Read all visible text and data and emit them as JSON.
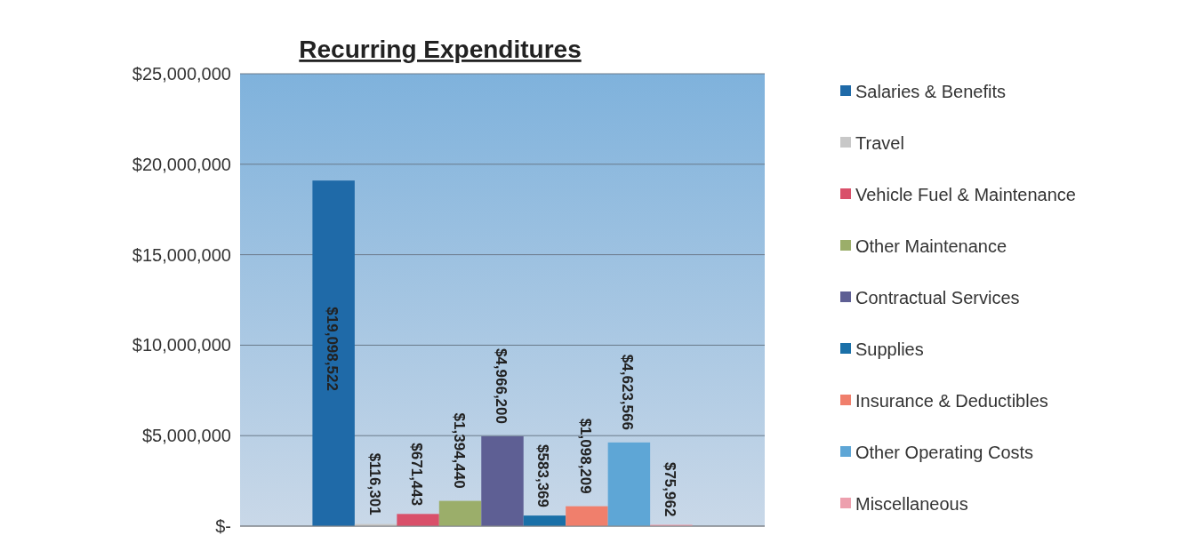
{
  "chart_data": {
    "type": "bar",
    "title": "Recurring Expenditures",
    "categories": [
      null
    ],
    "ylim": [
      0,
      25000000
    ],
    "yticks": [
      {
        "value": 0,
        "label": "$-"
      },
      {
        "value": 5000000,
        "label": "$5,000,000"
      },
      {
        "value": 10000000,
        "label": "$10,000,000"
      },
      {
        "value": 15000000,
        "label": "$15,000,000"
      },
      {
        "value": 20000000,
        "label": "$20,000,000"
      },
      {
        "value": 25000000,
        "label": "$25,000,000"
      }
    ],
    "grid": "y",
    "legend": "right",
    "series": [
      {
        "name": "Salaries & Benefits",
        "color": "#1f6aa8",
        "values": [
          19098522
        ],
        "value_labels": [
          "$19,098,522"
        ]
      },
      {
        "name": "Travel",
        "color": "#c8c8c8",
        "values": [
          116301
        ],
        "value_labels": [
          "$116,301"
        ]
      },
      {
        "name": "Vehicle Fuel & Maintenance",
        "color": "#d9506a",
        "values": [
          671443
        ],
        "value_labels": [
          "$671,443"
        ]
      },
      {
        "name": "Other Maintenance",
        "color": "#9bae6a",
        "values": [
          1394440
        ],
        "value_labels": [
          "$1,394,440"
        ]
      },
      {
        "name": "Contractual Services",
        "color": "#5e5f94",
        "values": [
          4966200
        ],
        "value_labels": [
          "$4,966,200"
        ]
      },
      {
        "name": "Supplies",
        "color": "#1a70a8",
        "values": [
          583369
        ],
        "value_labels": [
          "$583,369"
        ]
      },
      {
        "name": "Insurance & Deductibles",
        "color": "#f07f6c",
        "values": [
          1098209
        ],
        "value_labels": [
          "$1,098,209"
        ]
      },
      {
        "name": "Other Operating Costs",
        "color": "#5ea6d6",
        "values": [
          4623566
        ],
        "value_labels": [
          "$4,623,566"
        ]
      },
      {
        "name": "Miscellaneous",
        "color": "#eda0ae",
        "values": [
          75962
        ],
        "value_labels": [
          "$75,962"
        ]
      }
    ]
  }
}
